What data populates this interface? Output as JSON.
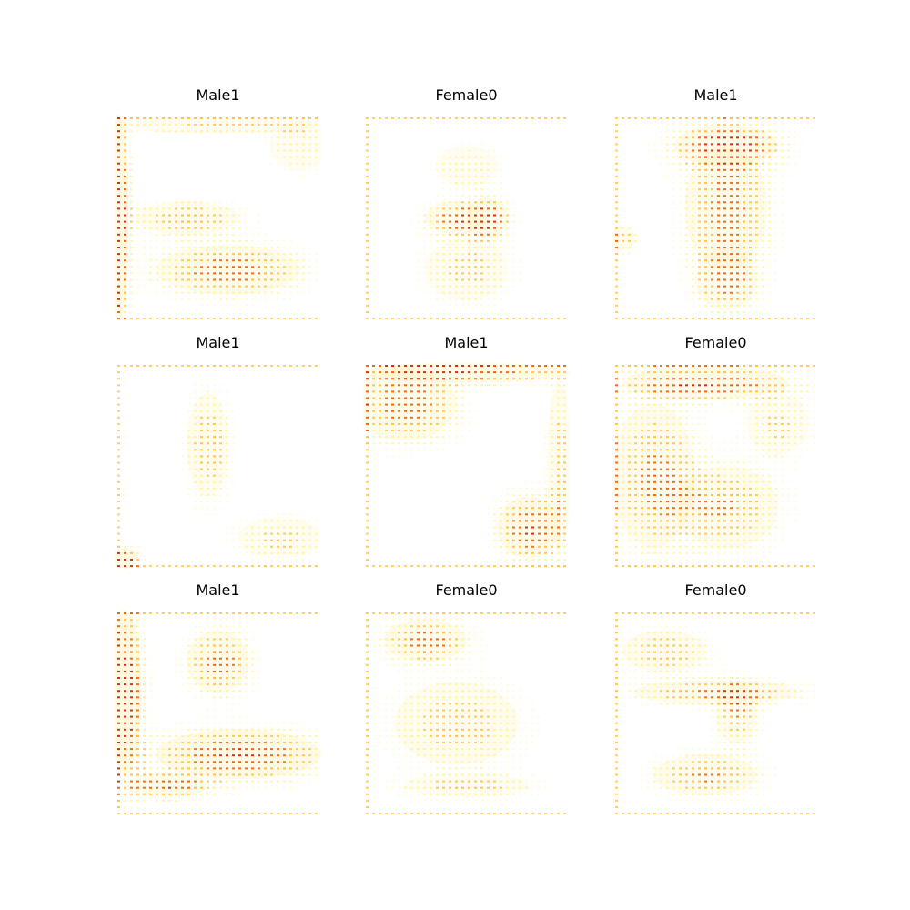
{
  "panels": [
    {
      "title": "Male1",
      "style": "m1a"
    },
    {
      "title": "Female0",
      "style": "f0a"
    },
    {
      "title": "Male1",
      "style": "m1b"
    },
    {
      "title": "Male1",
      "style": "m1c"
    },
    {
      "title": "Male1",
      "style": "m1d"
    },
    {
      "title": "Female0",
      "style": "f0b"
    },
    {
      "title": "Male1",
      "style": "m1e"
    },
    {
      "title": "Female0",
      "style": "f0c"
    },
    {
      "title": "Female0",
      "style": "f0d"
    }
  ],
  "colors": {
    "hot": "#d7301f",
    "warm": "#fc8d3c",
    "yellow": "#fff176",
    "pink": "#e377c2",
    "background": "#ffffff"
  }
}
